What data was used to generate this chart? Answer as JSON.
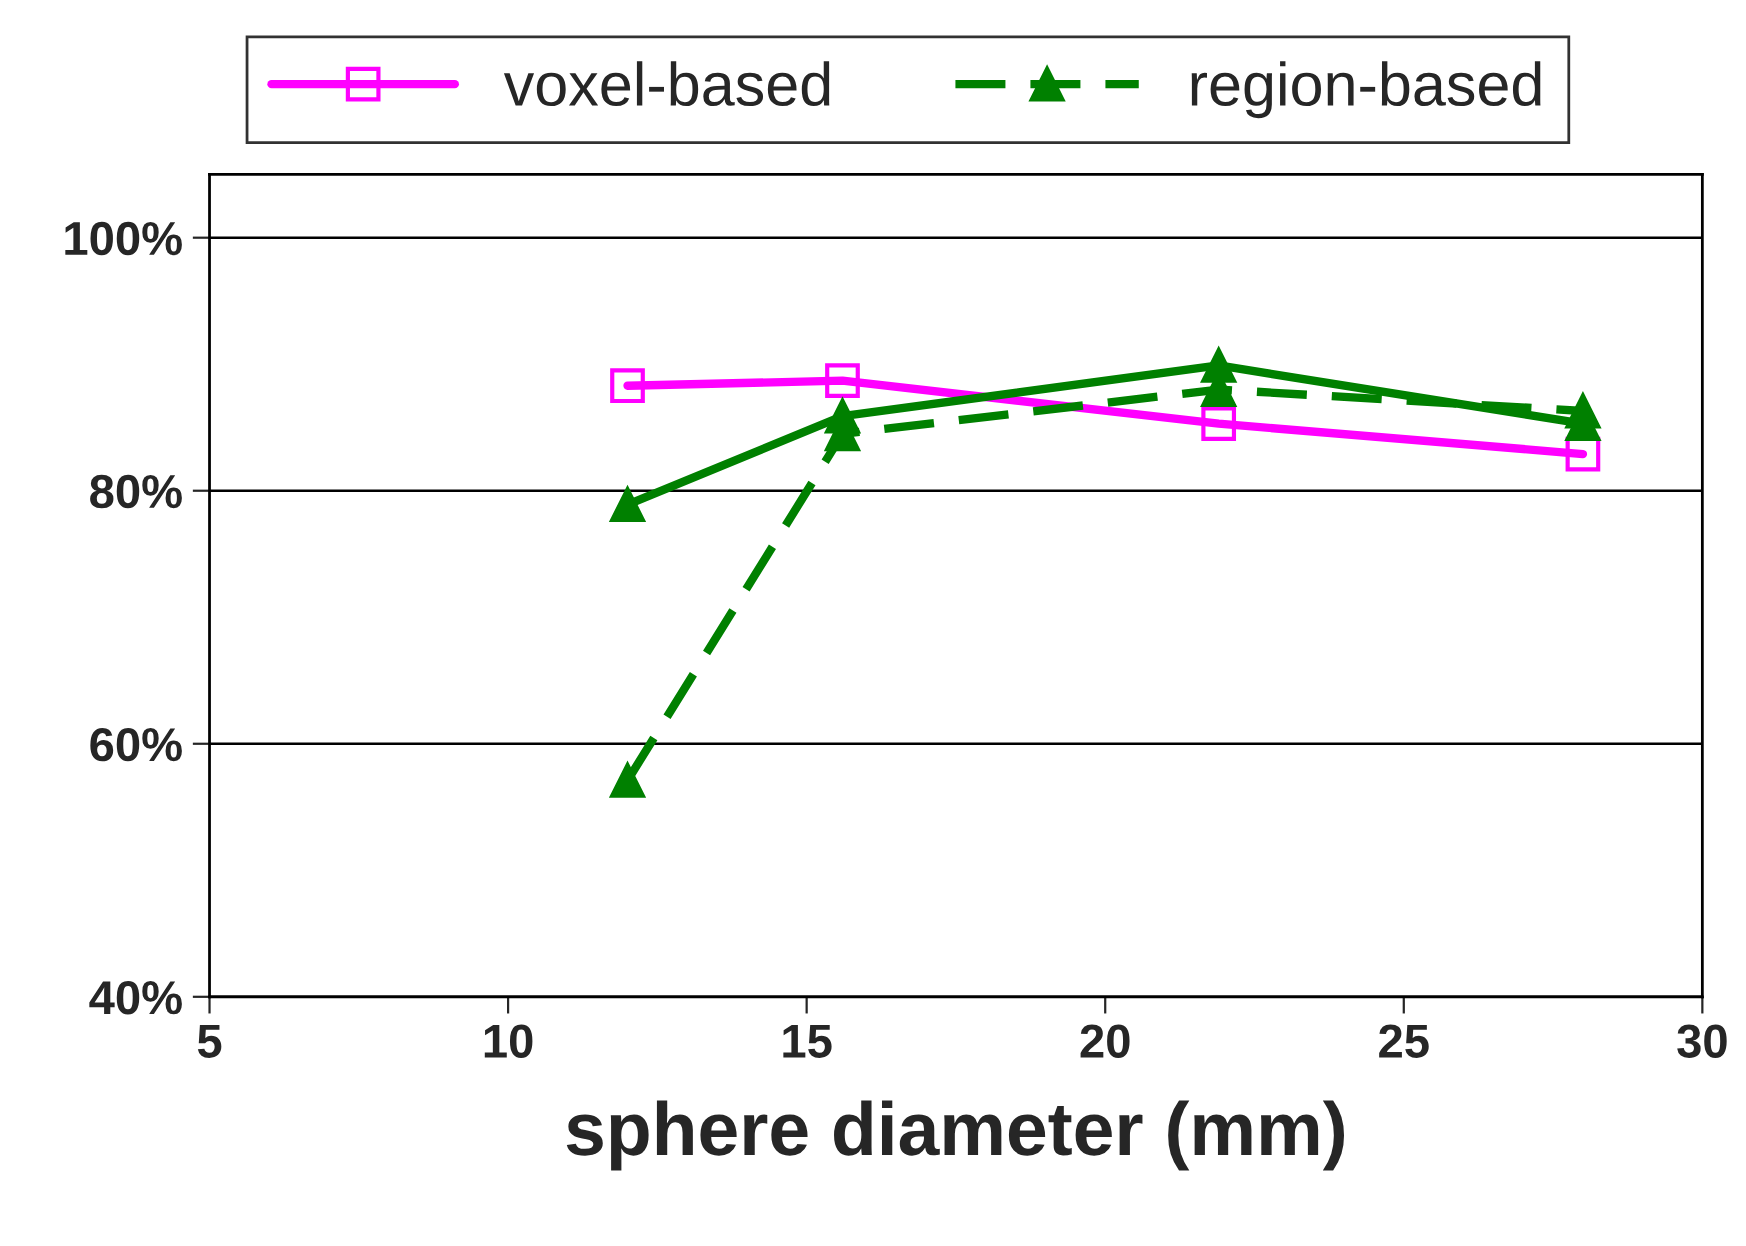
{
  "chart_data": {
    "type": "line",
    "xlabel": "sphere diameter (mm)",
    "xlim": [
      5,
      30
    ],
    "xticks": [
      5,
      10,
      15,
      20,
      25,
      30
    ],
    "ylim": [
      40,
      105
    ],
    "yticks": [
      {
        "value": 40,
        "label": "40%"
      },
      {
        "value": 60,
        "label": "60%"
      },
      {
        "value": 80,
        "label": "80%"
      },
      {
        "value": 100,
        "label": "100%"
      }
    ],
    "grid": "y",
    "legend": "top",
    "series": [
      {
        "name": "voxel-based",
        "color": "#ff00ff",
        "marker": "square",
        "line_style": "solid",
        "x": [
          12,
          15.6,
          21.9,
          28
        ],
        "values": [
          88.3,
          88.7,
          85.3,
          82.9
        ]
      },
      {
        "color": "#008000",
        "marker": "triangle",
        "line_style": "solid",
        "x": [
          12,
          15.6,
          21.9,
          28
        ],
        "values": [
          78.9,
          85.9,
          89.9,
          85.3
        ]
      },
      {
        "name": "region-based",
        "color": "#008000",
        "marker": "triangle",
        "line_style": "dashed",
        "x": [
          12,
          15.6,
          21.9,
          28
        ],
        "values": [
          57.1,
          84.5,
          88.0,
          86.3
        ]
      }
    ]
  }
}
